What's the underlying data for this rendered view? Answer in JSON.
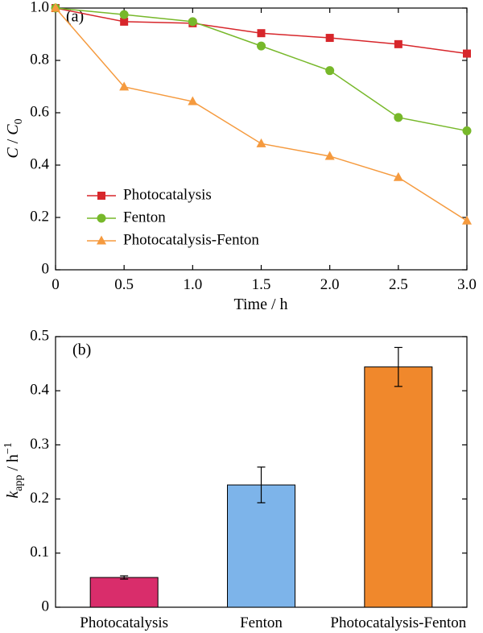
{
  "chart_data": [
    {
      "type": "line",
      "panel_label": "(a)",
      "xlabel": "Time / h",
      "ylabel": {
        "italic_main": "C",
        "separator": " / ",
        "italic_sub_main": "C",
        "subscript": "0"
      },
      "xlim": [
        0,
        3.0
      ],
      "ylim": [
        0,
        1.0
      ],
      "x_ticks": [
        "0",
        "0.5",
        "1.0",
        "1.5",
        "2.0",
        "2.5",
        "3.0"
      ],
      "x_tick_values": [
        0,
        0.5,
        1.0,
        1.5,
        2.0,
        2.5,
        3.0
      ],
      "y_ticks": [
        "0",
        "0.2",
        "0.4",
        "0.6",
        "0.8",
        "1.0"
      ],
      "y_tick_values": [
        0,
        0.2,
        0.4,
        0.6,
        0.8,
        1.0
      ],
      "grid": false,
      "legend_position": "left",
      "series": [
        {
          "name": "Photocatalysis",
          "color": "#d7262b",
          "marker": "square",
          "x": [
            0,
            0.5,
            1.0,
            1.5,
            2.0,
            2.5,
            3.0
          ],
          "y": [
            1.0,
            0.948,
            0.942,
            0.904,
            0.886,
            0.862,
            0.826
          ]
        },
        {
          "name": "Fenton",
          "color": "#77b82a",
          "marker": "circle",
          "x": [
            0,
            0.5,
            1.0,
            1.5,
            2.0,
            2.5,
            3.0
          ],
          "y": [
            1.0,
            0.975,
            0.948,
            0.855,
            0.761,
            0.582,
            0.531
          ]
        },
        {
          "name": "Photocatalysis-Fenton",
          "color": "#f59a3e",
          "marker": "triangle",
          "x": [
            0,
            0.5,
            1.0,
            1.5,
            2.0,
            2.5,
            3.0
          ],
          "y": [
            1.0,
            0.699,
            0.643,
            0.482,
            0.434,
            0.353,
            0.187
          ]
        }
      ]
    },
    {
      "type": "bar",
      "panel_label": "(b)",
      "categories": [
        "Photocatalysis",
        "Fenton",
        "Photocatalysis-Fenton"
      ],
      "values": [
        0.055,
        0.226,
        0.444
      ],
      "errors": [
        0.003,
        0.033,
        0.036
      ],
      "colors": [
        "#d92d6b",
        "#7db4ea",
        "#f0882c"
      ],
      "ylabel": {
        "italic_main": "k",
        "subscript": "app",
        "unit": " / h",
        "superscript": "−1"
      },
      "xlabel": "",
      "ylim": [
        0,
        0.5
      ],
      "y_ticks": [
        "0",
        "0.1",
        "0.2",
        "0.3",
        "0.4",
        "0.5"
      ],
      "y_tick_values": [
        0,
        0.1,
        0.2,
        0.3,
        0.4,
        0.5
      ],
      "grid": false
    }
  ]
}
